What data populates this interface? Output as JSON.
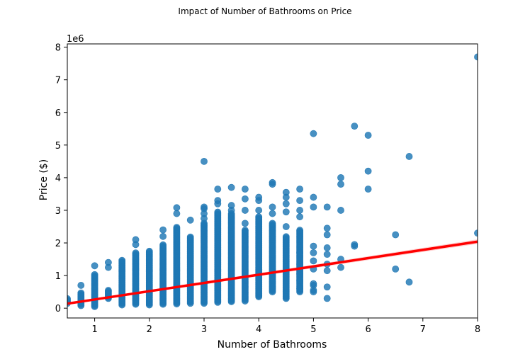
{
  "chart_data": {
    "type": "scatter",
    "title": "Impact of Number of Bathrooms on Price",
    "xlabel": "Number of Bathrooms",
    "ylabel": "Price ($)",
    "y_offset_label": "1e6",
    "xlim": [
      0.5,
      8
    ],
    "ylim": [
      -0.3,
      8.1
    ],
    "x_ticks": [
      1,
      2,
      3,
      4,
      5,
      6,
      7,
      8
    ],
    "y_ticks": [
      0,
      1,
      2,
      3,
      4,
      5,
      6,
      7,
      8
    ],
    "grid": false,
    "point_color": "#1f77b4",
    "line_color": "#ff0000",
    "columns": [
      {
        "x": 0.5,
        "min": 0.15,
        "max": 0.32
      },
      {
        "x": 0.75,
        "min": 0.08,
        "max": 0.48
      },
      {
        "x": 1.0,
        "min": 0.05,
        "max": 1.05
      },
      {
        "x": 1.25,
        "min": 0.3,
        "max": 0.55
      },
      {
        "x": 1.5,
        "min": 0.1,
        "max": 1.48
      },
      {
        "x": 1.75,
        "min": 0.12,
        "max": 1.7
      },
      {
        "x": 2.0,
        "min": 0.1,
        "max": 1.75
      },
      {
        "x": 2.25,
        "min": 0.12,
        "max": 1.95
      },
      {
        "x": 2.5,
        "min": 0.13,
        "max": 2.5
      },
      {
        "x": 2.75,
        "min": 0.15,
        "max": 2.2
      },
      {
        "x": 3.0,
        "min": 0.15,
        "max": 2.6
      },
      {
        "x": 3.25,
        "min": 0.18,
        "max": 2.95
      },
      {
        "x": 3.5,
        "min": 0.2,
        "max": 2.9
      },
      {
        "x": 3.75,
        "min": 0.22,
        "max": 2.4
      },
      {
        "x": 4.0,
        "min": 0.35,
        "max": 2.8
      },
      {
        "x": 4.25,
        "min": 0.5,
        "max": 2.6
      },
      {
        "x": 4.5,
        "min": 0.3,
        "max": 2.2
      },
      {
        "x": 4.75,
        "min": 0.5,
        "max": 2.4
      }
    ],
    "points": [
      {
        "x": 1.0,
        "y": 1.3
      },
      {
        "x": 0.75,
        "y": 0.7
      },
      {
        "x": 1.25,
        "y": 1.25
      },
      {
        "x": 1.25,
        "y": 1.4
      },
      {
        "x": 1.75,
        "y": 1.95
      },
      {
        "x": 1.75,
        "y": 2.1
      },
      {
        "x": 2.25,
        "y": 2.2
      },
      {
        "x": 2.25,
        "y": 2.4
      },
      {
        "x": 2.5,
        "y": 2.9
      },
      {
        "x": 2.5,
        "y": 3.08
      },
      {
        "x": 2.75,
        "y": 2.7
      },
      {
        "x": 3.0,
        "y": 2.75
      },
      {
        "x": 3.0,
        "y": 2.9
      },
      {
        "x": 3.0,
        "y": 3.05
      },
      {
        "x": 3.0,
        "y": 3.1
      },
      {
        "x": 3.0,
        "y": 4.5
      },
      {
        "x": 3.25,
        "y": 3.2
      },
      {
        "x": 3.25,
        "y": 3.3
      },
      {
        "x": 3.25,
        "y": 3.65
      },
      {
        "x": 3.5,
        "y": 3.0
      },
      {
        "x": 3.5,
        "y": 3.15
      },
      {
        "x": 3.5,
        "y": 3.7
      },
      {
        "x": 3.75,
        "y": 2.6
      },
      {
        "x": 3.75,
        "y": 3.0
      },
      {
        "x": 3.75,
        "y": 3.35
      },
      {
        "x": 3.75,
        "y": 3.65
      },
      {
        "x": 4.0,
        "y": 3.0
      },
      {
        "x": 4.0,
        "y": 3.3
      },
      {
        "x": 4.0,
        "y": 3.4
      },
      {
        "x": 4.25,
        "y": 2.9
      },
      {
        "x": 4.25,
        "y": 3.1
      },
      {
        "x": 4.25,
        "y": 3.8
      },
      {
        "x": 4.25,
        "y": 3.85
      },
      {
        "x": 4.5,
        "y": 2.5
      },
      {
        "x": 4.5,
        "y": 2.95
      },
      {
        "x": 4.5,
        "y": 3.2
      },
      {
        "x": 4.5,
        "y": 3.4
      },
      {
        "x": 4.5,
        "y": 3.55
      },
      {
        "x": 4.75,
        "y": 1.7
      },
      {
        "x": 4.75,
        "y": 1.35
      },
      {
        "x": 4.75,
        "y": 1.05
      },
      {
        "x": 4.75,
        "y": 0.85
      },
      {
        "x": 4.75,
        "y": 0.6
      },
      {
        "x": 4.75,
        "y": 2.8
      },
      {
        "x": 4.75,
        "y": 3.0
      },
      {
        "x": 4.75,
        "y": 3.3
      },
      {
        "x": 4.75,
        "y": 3.65
      },
      {
        "x": 5.0,
        "y": 0.5
      },
      {
        "x": 5.0,
        "y": 0.55
      },
      {
        "x": 5.0,
        "y": 0.7
      },
      {
        "x": 5.0,
        "y": 0.75
      },
      {
        "x": 5.0,
        "y": 1.2
      },
      {
        "x": 5.0,
        "y": 1.45
      },
      {
        "x": 5.0,
        "y": 1.7
      },
      {
        "x": 5.0,
        "y": 1.9
      },
      {
        "x": 5.0,
        "y": 3.1
      },
      {
        "x": 5.0,
        "y": 3.4
      },
      {
        "x": 5.0,
        "y": 5.35
      },
      {
        "x": 5.25,
        "y": 0.3
      },
      {
        "x": 5.25,
        "y": 0.65
      },
      {
        "x": 5.25,
        "y": 1.15
      },
      {
        "x": 5.25,
        "y": 1.35
      },
      {
        "x": 5.25,
        "y": 1.65
      },
      {
        "x": 5.25,
        "y": 1.85
      },
      {
        "x": 5.25,
        "y": 2.25
      },
      {
        "x": 5.25,
        "y": 2.45
      },
      {
        "x": 5.25,
        "y": 3.1
      },
      {
        "x": 5.5,
        "y": 1.25
      },
      {
        "x": 5.5,
        "y": 1.5
      },
      {
        "x": 5.5,
        "y": 3.0
      },
      {
        "x": 5.5,
        "y": 3.8
      },
      {
        "x": 5.5,
        "y": 4.0
      },
      {
        "x": 5.75,
        "y": 1.9
      },
      {
        "x": 5.75,
        "y": 1.95
      },
      {
        "x": 5.75,
        "y": 5.58
      },
      {
        "x": 6.0,
        "y": 3.65
      },
      {
        "x": 6.0,
        "y": 4.2
      },
      {
        "x": 6.0,
        "y": 5.3
      },
      {
        "x": 6.5,
        "y": 1.2
      },
      {
        "x": 6.5,
        "y": 2.25
      },
      {
        "x": 6.75,
        "y": 0.8
      },
      {
        "x": 6.75,
        "y": 4.65
      },
      {
        "x": 8.0,
        "y": 2.3
      },
      {
        "x": 8.0,
        "y": 7.7
      }
    ],
    "regression_line": {
      "x1": 0.5,
      "y1": 0.14,
      "x2": 8.0,
      "y2": 2.04
    }
  }
}
